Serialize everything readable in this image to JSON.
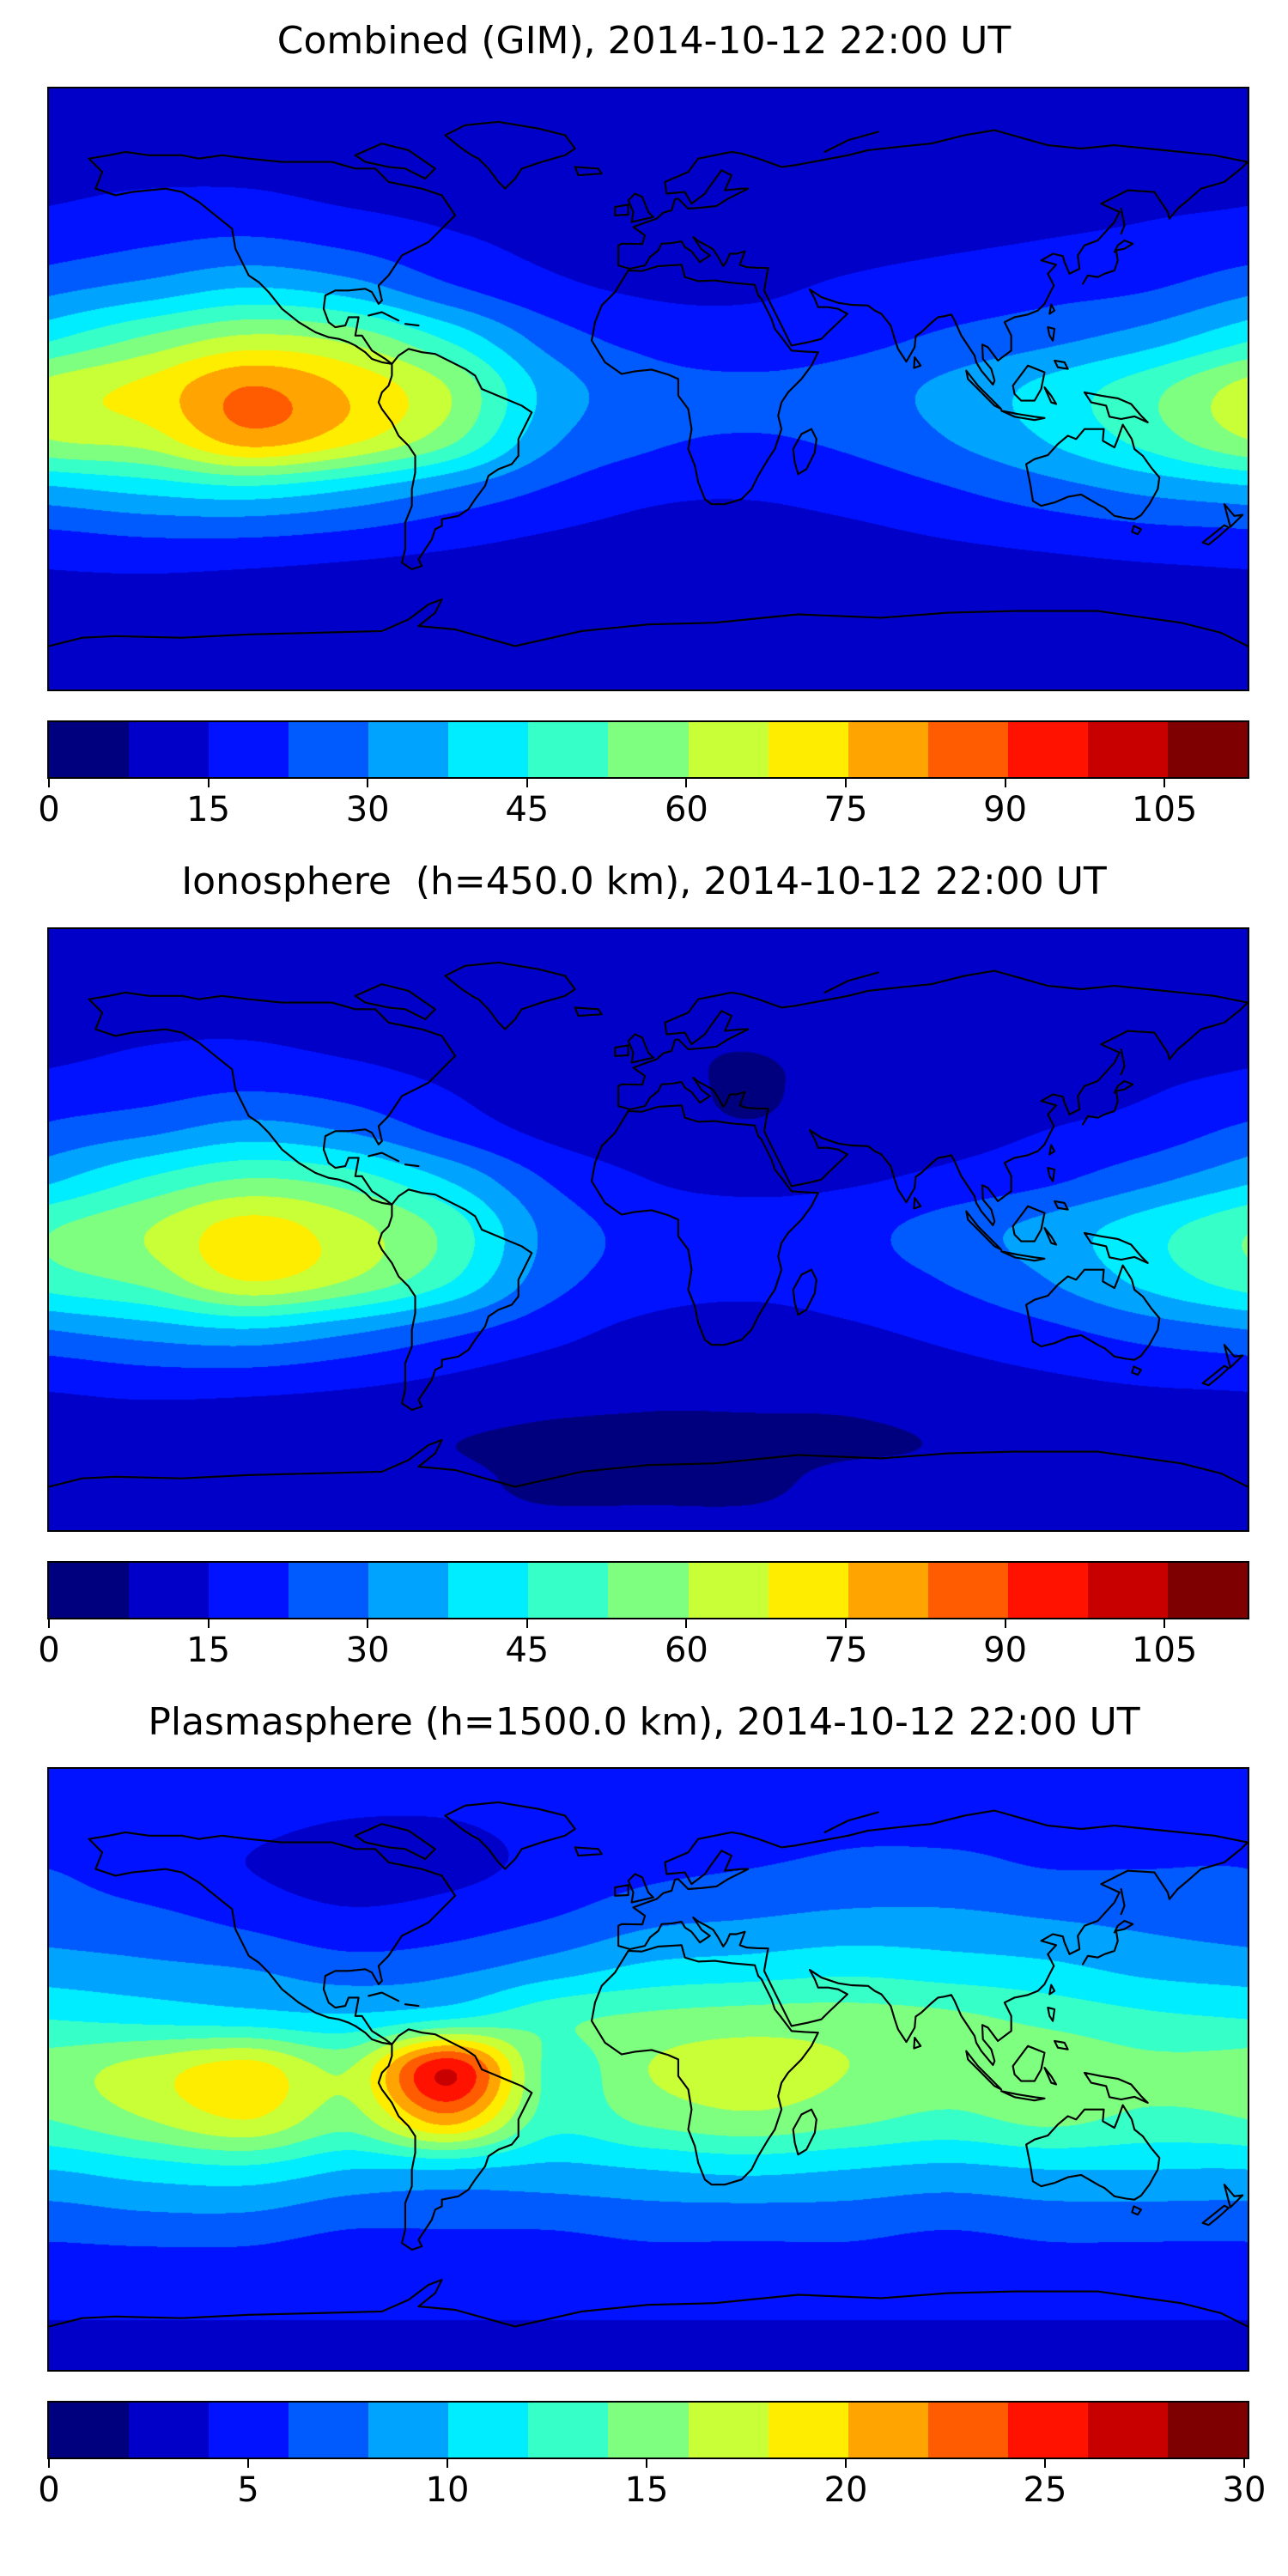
{
  "palette": {
    "background": "#ffffff",
    "frame": "#000000",
    "coastline": "#000000",
    "jet15": [
      "#00007f",
      "#0000c8",
      "#0012ff",
      "#005bff",
      "#00a4ff",
      "#00edff",
      "#37ffc8",
      "#7fff7f",
      "#c8ff37",
      "#ffed00",
      "#ffa400",
      "#ff5b00",
      "#ff1200",
      "#c80000",
      "#7f0000"
    ]
  },
  "chart_data": [
    {
      "type": "heatmap",
      "title": "Combined (GIM), 2014-10-12 22:00 UT",
      "projection": "equirectangular",
      "lon": [
        -180,
        -150,
        -120,
        -90,
        -60,
        -30,
        0,
        30,
        60,
        90,
        120,
        150,
        180
      ],
      "lat": [
        90,
        75,
        60,
        45,
        30,
        15,
        0,
        -15,
        -30,
        -45,
        -60,
        -75,
        -90
      ],
      "values": [
        [
          10,
          10,
          10,
          10,
          10,
          10,
          10,
          10,
          10,
          10,
          10,
          10,
          10
        ],
        [
          12,
          12,
          12,
          11,
          10,
          10,
          10,
          10,
          11,
          12,
          12,
          12,
          12
        ],
        [
          14,
          15,
          15,
          13,
          12,
          11,
          10,
          10,
          12,
          13,
          14,
          14,
          14
        ],
        [
          18,
          21,
          23,
          20,
          16,
          13,
          12,
          12,
          13,
          14,
          15,
          16,
          18
        ],
        [
          28,
          33,
          38,
          34,
          24,
          17,
          14,
          14,
          16,
          18,
          20,
          22,
          28
        ],
        [
          44,
          54,
          62,
          58,
          44,
          27,
          20,
          18,
          20,
          24,
          28,
          34,
          44
        ],
        [
          63,
          70,
          83,
          74,
          60,
          35,
          26,
          24,
          26,
          32,
          40,
          50,
          63
        ],
        [
          60,
          64,
          79,
          70,
          55,
          32,
          24,
          22,
          24,
          30,
          38,
          48,
          60
        ],
        [
          36,
          40,
          43,
          38,
          30,
          22,
          17,
          16,
          18,
          22,
          27,
          32,
          36
        ],
        [
          20,
          22,
          22,
          20,
          17,
          14,
          12,
          12,
          13,
          15,
          17,
          19,
          20
        ],
        [
          13,
          13,
          12,
          11,
          10,
          9,
          8,
          8,
          9,
          10,
          11,
          12,
          13
        ],
        [
          11,
          11,
          10,
          10,
          9,
          9,
          9,
          9,
          9,
          10,
          10,
          11,
          11
        ],
        [
          10,
          10,
          10,
          10,
          10,
          10,
          10,
          10,
          10,
          10,
          10,
          10,
          10
        ]
      ],
      "levels": {
        "min": 0,
        "max": 112.5,
        "n": 15
      },
      "colorbar_ticks": [
        0,
        15,
        30,
        45,
        60,
        75,
        90,
        105
      ]
    },
    {
      "type": "heatmap",
      "title": "Ionosphere  (h=450.0 km), 2014-10-12 22:00 UT",
      "projection": "equirectangular",
      "lon": [
        -180,
        -150,
        -120,
        -90,
        -60,
        -30,
        0,
        30,
        60,
        90,
        120,
        150,
        180
      ],
      "lat": [
        90,
        75,
        60,
        45,
        30,
        15,
        0,
        -15,
        -30,
        -45,
        -60,
        -75,
        -90
      ],
      "values": [
        [
          10,
          10,
          10,
          9,
          9,
          9,
          9,
          9,
          9,
          9,
          10,
          10,
          10
        ],
        [
          11,
          11,
          11,
          10,
          9,
          9,
          8,
          8,
          9,
          10,
          11,
          11,
          11
        ],
        [
          13,
          14,
          14,
          12,
          10,
          9,
          8,
          8,
          9,
          11,
          12,
          13,
          13
        ],
        [
          16,
          18,
          20,
          18,
          14,
          11,
          9,
          7,
          9,
          10,
          12,
          14,
          16
        ],
        [
          24,
          28,
          33,
          29,
          20,
          13,
          10,
          8,
          10,
          12,
          15,
          18,
          24
        ],
        [
          36,
          46,
          53,
          49,
          37,
          22,
          15,
          13,
          14,
          17,
          21,
          28,
          36
        ],
        [
          52,
          60,
          71,
          63,
          50,
          28,
          20,
          18,
          20,
          26,
          33,
          42,
          52
        ],
        [
          49,
          55,
          68,
          60,
          46,
          26,
          19,
          17,
          19,
          23,
          30,
          40,
          49
        ],
        [
          30,
          34,
          37,
          32,
          25,
          18,
          13,
          12,
          14,
          17,
          21,
          26,
          30
        ],
        [
          17,
          19,
          19,
          17,
          14,
          11,
          9,
          9,
          10,
          12,
          14,
          16,
          17
        ],
        [
          11,
          11,
          10,
          9,
          8,
          7,
          7,
          7,
          7,
          8,
          9,
          10,
          11
        ],
        [
          9,
          9,
          9,
          8,
          8,
          7,
          7,
          7,
          8,
          8,
          9,
          9,
          9
        ],
        [
          8,
          8,
          8,
          8,
          8,
          8,
          8,
          8,
          8,
          8,
          8,
          8,
          8
        ]
      ],
      "levels": {
        "min": 0,
        "max": 112.5,
        "n": 15
      },
      "colorbar_ticks": [
        0,
        15,
        30,
        45,
        60,
        75,
        90,
        105
      ]
    },
    {
      "type": "heatmap",
      "title": "Plasmasphere (h=1500.0 km), 2014-10-12 22:00 UT",
      "projection": "equirectangular",
      "lon": [
        -180,
        -150,
        -120,
        -90,
        -60,
        -30,
        0,
        30,
        60,
        90,
        120,
        150,
        180
      ],
      "lat": [
        90,
        75,
        60,
        45,
        30,
        15,
        0,
        -15,
        -30,
        -45,
        -60,
        -75,
        -90
      ],
      "values": [
        [
          5,
          5,
          5,
          5,
          5,
          5,
          5,
          5,
          5,
          5,
          5,
          5,
          5
        ],
        [
          5,
          5,
          4.5,
          4,
          4,
          4.5,
          5,
          5,
          5.5,
          5.5,
          5.5,
          5,
          5
        ],
        [
          6,
          5,
          4,
          3,
          3.5,
          4.5,
          5.5,
          6,
          6.5,
          6.5,
          6,
          6,
          6
        ],
        [
          7,
          6.5,
          5.5,
          4.5,
          5,
          6,
          7.5,
          8,
          8.5,
          8.5,
          8,
          7.5,
          7
        ],
        [
          9,
          8.5,
          8,
          7,
          7.5,
          9,
          10.5,
          11,
          11.5,
          11,
          10.5,
          9.5,
          9
        ],
        [
          12,
          11.5,
          11,
          10.5,
          12,
          13.5,
          14.5,
          15,
          15,
          14.5,
          13.5,
          12.5,
          12
        ],
        [
          15,
          17,
          19,
          16,
          26,
          13.5,
          16,
          17,
          16,
          15,
          15.5,
          14.5,
          15
        ],
        [
          14,
          16,
          18,
          15,
          21,
          13,
          14.5,
          15.5,
          14.5,
          13.5,
          14.5,
          13.5,
          14
        ],
        [
          10,
          11,
          11.5,
          10,
          10,
          9.5,
          10,
          10.5,
          10,
          9.5,
          10,
          10,
          10
        ],
        [
          7,
          7.5,
          7.5,
          6.5,
          6.5,
          6.5,
          7,
          7,
          7,
          6.5,
          7,
          7,
          7
        ],
        [
          5,
          5,
          5,
          4.5,
          4.5,
          4.5,
          5,
          5,
          5,
          4.5,
          5,
          5,
          5
        ],
        [
          4,
          4,
          4,
          4,
          4,
          4,
          4,
          4,
          4,
          4,
          4,
          4,
          4
        ],
        [
          4,
          4,
          4,
          4,
          4,
          4,
          4,
          4,
          4,
          4,
          4,
          4,
          4
        ]
      ],
      "levels": {
        "min": 0,
        "max": 30,
        "n": 15
      },
      "colorbar_ticks": [
        0,
        5,
        10,
        15,
        20,
        25,
        30
      ]
    }
  ]
}
